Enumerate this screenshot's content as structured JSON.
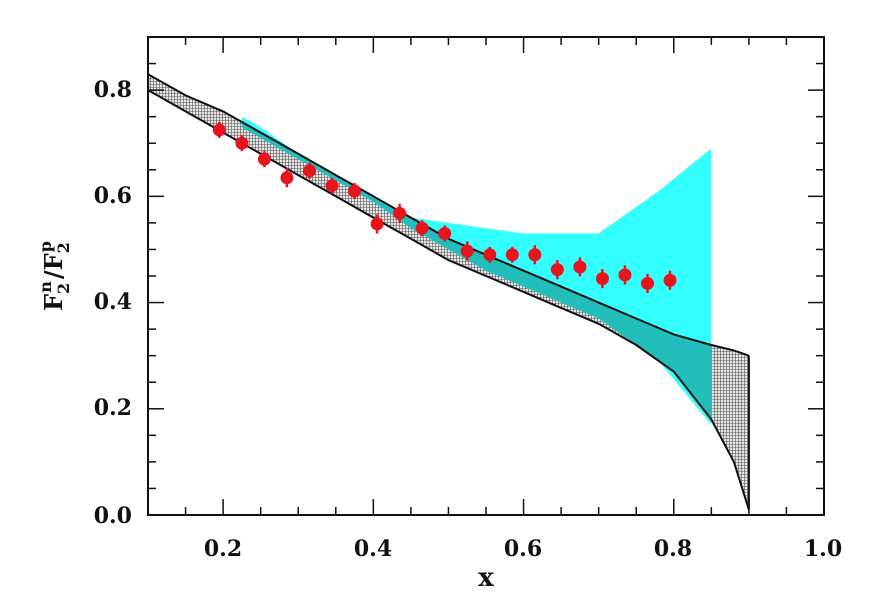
{
  "chart_data": {
    "type": "scatter",
    "xlabel": "x",
    "ylabel": "F2n/F2p",
    "ylabel_parts": {
      "f1": "F",
      "sub1": "2",
      "sup1": "n",
      "slash": "/",
      "f2": "F",
      "sub2": "2",
      "sup2": "p"
    },
    "xlim": [
      0.1,
      1.0
    ],
    "ylim": [
      0.0,
      0.9
    ],
    "xticks": [
      0.2,
      0.4,
      0.6,
      0.8,
      1.0
    ],
    "xtick_labels": [
      "0.2",
      "0.4",
      "0.6",
      "0.8",
      "1.0"
    ],
    "yticks": [
      0.0,
      0.2,
      0.4,
      0.6,
      0.8
    ],
    "ytick_labels": [
      "0.0",
      "0.2",
      "0.4",
      "0.6",
      "0.8"
    ],
    "grid": false,
    "colors": {
      "points": "#e8141c",
      "cyan_band": "#33ffff",
      "hatched_band": "#a0a0a0",
      "overlap": "#1fb3b0",
      "axes": "#111111"
    },
    "hatched_band": {
      "x": [
        0.1,
        0.15,
        0.2,
        0.25,
        0.3,
        0.35,
        0.4,
        0.45,
        0.5,
        0.55,
        0.6,
        0.65,
        0.7,
        0.75,
        0.8,
        0.85,
        0.88,
        0.9
      ],
      "upper": [
        0.83,
        0.79,
        0.76,
        0.72,
        0.68,
        0.64,
        0.6,
        0.56,
        0.52,
        0.49,
        0.46,
        0.43,
        0.4,
        0.37,
        0.34,
        0.32,
        0.31,
        0.3
      ],
      "lower": [
        0.8,
        0.76,
        0.72,
        0.68,
        0.64,
        0.6,
        0.56,
        0.52,
        0.48,
        0.45,
        0.42,
        0.39,
        0.36,
        0.32,
        0.27,
        0.18,
        0.1,
        0.01
      ]
    },
    "cyan_band": {
      "x": [
        0.225,
        0.25,
        0.3,
        0.35,
        0.4,
        0.45,
        0.5,
        0.55,
        0.6,
        0.65,
        0.7,
        0.74,
        0.78,
        0.85
      ],
      "upper": [
        0.75,
        0.73,
        0.68,
        0.64,
        0.6,
        0.56,
        0.55,
        0.54,
        0.53,
        0.53,
        0.53,
        0.57,
        0.61,
        0.69
      ],
      "lower": [
        0.73,
        0.71,
        0.67,
        0.63,
        0.59,
        0.54,
        0.5,
        0.46,
        0.43,
        0.4,
        0.37,
        0.33,
        0.29,
        0.17
      ]
    },
    "points": [
      {
        "x": 0.195,
        "y": 0.725,
        "err": 0.015
      },
      {
        "x": 0.225,
        "y": 0.7,
        "err": 0.015
      },
      {
        "x": 0.255,
        "y": 0.67,
        "err": 0.015
      },
      {
        "x": 0.285,
        "y": 0.635,
        "err": 0.018
      },
      {
        "x": 0.315,
        "y": 0.648,
        "err": 0.015
      },
      {
        "x": 0.345,
        "y": 0.62,
        "err": 0.015
      },
      {
        "x": 0.375,
        "y": 0.61,
        "err": 0.015
      },
      {
        "x": 0.405,
        "y": 0.548,
        "err": 0.018
      },
      {
        "x": 0.435,
        "y": 0.568,
        "err": 0.018
      },
      {
        "x": 0.465,
        "y": 0.54,
        "err": 0.015
      },
      {
        "x": 0.495,
        "y": 0.53,
        "err": 0.015
      },
      {
        "x": 0.525,
        "y": 0.497,
        "err": 0.018
      },
      {
        "x": 0.555,
        "y": 0.49,
        "err": 0.015
      },
      {
        "x": 0.585,
        "y": 0.49,
        "err": 0.015
      },
      {
        "x": 0.615,
        "y": 0.49,
        "err": 0.018
      },
      {
        "x": 0.645,
        "y": 0.462,
        "err": 0.018
      },
      {
        "x": 0.675,
        "y": 0.467,
        "err": 0.018
      },
      {
        "x": 0.705,
        "y": 0.445,
        "err": 0.018
      },
      {
        "x": 0.735,
        "y": 0.452,
        "err": 0.018
      },
      {
        "x": 0.765,
        "y": 0.436,
        "err": 0.018
      },
      {
        "x": 0.795,
        "y": 0.442,
        "err": 0.018
      }
    ]
  }
}
